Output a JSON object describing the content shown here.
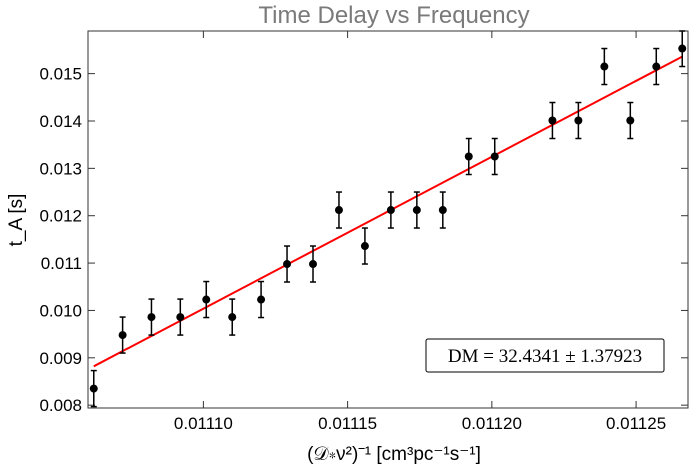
{
  "chart_data": {
    "type": "scatter",
    "title": "Time Delay vs Frequency",
    "xlabel": "(𝒟∗ν²)⁻¹ [cm³pc⁻¹s⁻¹]",
    "ylabel": "t_A [s]",
    "xlim": [
      0.01106,
      0.011268
    ],
    "ylim": [
      0.00794,
      0.0159
    ],
    "xticks": [
      0.0111,
      0.01115,
      0.0112,
      0.01125
    ],
    "xtick_labels": [
      "0.01110",
      "0.01115",
      "0.01120",
      "0.01125"
    ],
    "yticks": [
      0.008,
      0.009,
      0.01,
      0.011,
      0.012,
      0.013,
      0.014,
      0.015
    ],
    "ytick_labels": [
      "0.008",
      "0.009",
      "0.010",
      "0.011",
      "0.012",
      "0.013",
      "0.014",
      "0.015"
    ],
    "series": [
      {
        "type": "scatter",
        "color": "#000000",
        "error": 0.00038,
        "points": [
          {
            "x": 0.011062,
            "y": 0.00835
          },
          {
            "x": 0.011072,
            "y": 0.00948
          },
          {
            "x": 0.011082,
            "y": 0.00986
          },
          {
            "x": 0.011092,
            "y": 0.00986
          },
          {
            "x": 0.011101,
            "y": 0.01023
          },
          {
            "x": 0.01111,
            "y": 0.00986
          },
          {
            "x": 0.01112,
            "y": 0.01023
          },
          {
            "x": 0.011129,
            "y": 0.01098
          },
          {
            "x": 0.011138,
            "y": 0.01098
          },
          {
            "x": 0.011147,
            "y": 0.01212
          },
          {
            "x": 0.011156,
            "y": 0.01136
          },
          {
            "x": 0.011165,
            "y": 0.01212
          },
          {
            "x": 0.011174,
            "y": 0.01212
          },
          {
            "x": 0.011183,
            "y": 0.01212
          },
          {
            "x": 0.011192,
            "y": 0.01325
          },
          {
            "x": 0.011201,
            "y": 0.01325
          },
          {
            "x": 0.011221,
            "y": 0.01401
          },
          {
            "x": 0.01123,
            "y": 0.01401
          },
          {
            "x": 0.011239,
            "y": 0.01515
          },
          {
            "x": 0.011248,
            "y": 0.01401
          },
          {
            "x": 0.011257,
            "y": 0.01515
          },
          {
            "x": 0.011266,
            "y": 0.01553
          }
        ]
      },
      {
        "type": "line",
        "color": "#ff0000",
        "points": [
          {
            "x": 0.011062,
            "y": 0.00882
          },
          {
            "x": 0.011266,
            "y": 0.01536
          }
        ]
      }
    ],
    "annotation": "DM = 32.4341 ± 1.37923",
    "annotation_position": "bottom-right",
    "grid": false,
    "legend": "none"
  }
}
